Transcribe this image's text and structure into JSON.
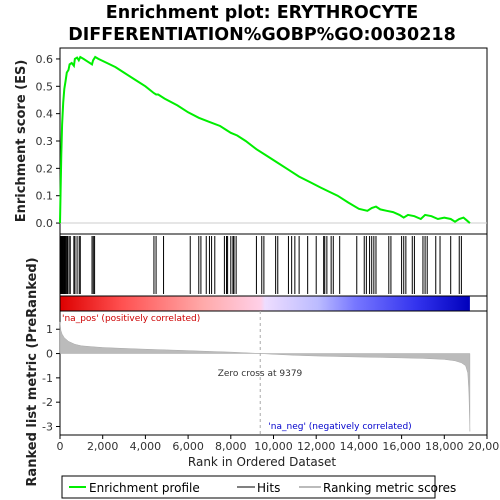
{
  "chart_data": {
    "type": "line",
    "title_line1": "Enrichment plot: ERYTHROCYTE",
    "title_line2": "DIFFERENTIATION%GOBP%GO:0030218",
    "ylabel_top": "Enrichment score (ES)",
    "ylabel_bottom": "Ranked list metric (PreRanked)",
    "xlabel": "Rank in Ordered Dataset",
    "x_ticks": [
      "0",
      "2,000",
      "4,000",
      "6,000",
      "8,000",
      "10,000",
      "12,000",
      "14,000",
      "16,000",
      "18,000",
      "20,000"
    ],
    "y_ticks_top": [
      "0.0",
      "0.1",
      "0.2",
      "0.3",
      "0.4",
      "0.5",
      "0.6"
    ],
    "y_ticks_bottom": [
      "1",
      "0",
      "-1",
      "-2",
      "-3"
    ],
    "xlim": [
      0,
      20000
    ],
    "ylim_top": [
      -0.04,
      0.64
    ],
    "ylim_bottom": [
      -3.35,
      1.75
    ],
    "n_genes": 19200,
    "zero_cross": 9379,
    "annotations": {
      "zero_cross": "Zero cross at 9379",
      "na_pos": "'na_pos' (positively correlated)",
      "na_neg": "'na_neg' (negatively correlated)"
    },
    "legend": {
      "enrichment": "Enrichment profile",
      "hits": "Hits",
      "ranking": "Ranking metric scores"
    },
    "colors": {
      "enrichment": "#00ee00",
      "hits": "#000000",
      "ranking": "#bbbbbb",
      "zero_line": "#bbbbbb",
      "na_pos": "#cc0000",
      "na_neg": "#0000cc"
    },
    "es_profile": [
      [
        0,
        0.0
      ],
      [
        30,
        0.12
      ],
      [
        60,
        0.25
      ],
      [
        100,
        0.36
      ],
      [
        150,
        0.44
      ],
      [
        200,
        0.49
      ],
      [
        260,
        0.52
      ],
      [
        320,
        0.55
      ],
      [
        400,
        0.56
      ],
      [
        450,
        0.58
      ],
      [
        550,
        0.585
      ],
      [
        650,
        0.575
      ],
      [
        700,
        0.6
      ],
      [
        800,
        0.605
      ],
      [
        880,
        0.595
      ],
      [
        950,
        0.607
      ],
      [
        1100,
        0.6
      ],
      [
        1300,
        0.59
      ],
      [
        1500,
        0.58
      ],
      [
        1550,
        0.595
      ],
      [
        1650,
        0.607
      ],
      [
        1800,
        0.6
      ],
      [
        2200,
        0.585
      ],
      [
        2600,
        0.57
      ],
      [
        3000,
        0.55
      ],
      [
        3500,
        0.525
      ],
      [
        4000,
        0.5
      ],
      [
        4400,
        0.475
      ],
      [
        4500,
        0.47
      ],
      [
        4600,
        0.47
      ],
      [
        4900,
        0.455
      ],
      [
        5500,
        0.43
      ],
      [
        6000,
        0.405
      ],
      [
        6500,
        0.385
      ],
      [
        7000,
        0.37
      ],
      [
        7500,
        0.355
      ],
      [
        7800,
        0.34
      ],
      [
        8000,
        0.33
      ],
      [
        8300,
        0.32
      ],
      [
        8700,
        0.3
      ],
      [
        9200,
        0.27
      ],
      [
        9700,
        0.245
      ],
      [
        10200,
        0.22
      ],
      [
        10700,
        0.195
      ],
      [
        11200,
        0.17
      ],
      [
        11700,
        0.15
      ],
      [
        12200,
        0.13
      ],
      [
        12600,
        0.115
      ],
      [
        13000,
        0.1
      ],
      [
        13500,
        0.075
      ],
      [
        14000,
        0.052
      ],
      [
        14400,
        0.045
      ],
      [
        14600,
        0.055
      ],
      [
        14800,
        0.06
      ],
      [
        15000,
        0.05
      ],
      [
        15300,
        0.045
      ],
      [
        15600,
        0.04
      ],
      [
        15900,
        0.03
      ],
      [
        16100,
        0.02
      ],
      [
        16300,
        0.03
      ],
      [
        16600,
        0.025
      ],
      [
        16900,
        0.015
      ],
      [
        17100,
        0.03
      ],
      [
        17400,
        0.025
      ],
      [
        17700,
        0.015
      ],
      [
        18000,
        0.02
      ],
      [
        18300,
        0.015
      ],
      [
        18500,
        0.005
      ],
      [
        18700,
        0.015
      ],
      [
        18900,
        0.02
      ],
      [
        19050,
        0.01
      ],
      [
        19200,
        0.0
      ]
    ],
    "ranking_metric": [
      [
        0,
        1.3
      ],
      [
        40,
        0.95
      ],
      [
        100,
        0.8
      ],
      [
        200,
        0.65
      ],
      [
        400,
        0.5
      ],
      [
        700,
        0.38
      ],
      [
        1000,
        0.32
      ],
      [
        1500,
        0.28
      ],
      [
        2000,
        0.25
      ],
      [
        3000,
        0.21
      ],
      [
        4000,
        0.18
      ],
      [
        5000,
        0.15
      ],
      [
        6000,
        0.12
      ],
      [
        7000,
        0.09
      ],
      [
        8000,
        0.06
      ],
      [
        9000,
        0.02
      ],
      [
        9379,
        0.0
      ],
      [
        10000,
        -0.03
      ],
      [
        11000,
        -0.07
      ],
      [
        12000,
        -0.1
      ],
      [
        13000,
        -0.12
      ],
      [
        14000,
        -0.14
      ],
      [
        15000,
        -0.16
      ],
      [
        16000,
        -0.18
      ],
      [
        17000,
        -0.2
      ],
      [
        18000,
        -0.24
      ],
      [
        18500,
        -0.3
      ],
      [
        18800,
        -0.38
      ],
      [
        19000,
        -0.5
      ],
      [
        19100,
        -0.8
      ],
      [
        19150,
        -1.6
      ],
      [
        19200,
        -3.2
      ]
    ],
    "hits": [
      10,
      30,
      50,
      70,
      90,
      110,
      130,
      160,
      190,
      220,
      260,
      300,
      350,
      420,
      480,
      650,
      700,
      800,
      900,
      950,
      1500,
      1560,
      1620,
      4400,
      4500,
      4850,
      6100,
      6500,
      6600,
      6850,
      7000,
      7100,
      7250,
      7700,
      7800,
      7850,
      8000,
      8100,
      8150,
      8250,
      9200,
      9450,
      9550,
      10100,
      10200,
      10700,
      10850,
      11000,
      11200,
      11600,
      12000,
      12350,
      12400,
      12500,
      12700,
      12800,
      13100,
      13900,
      14250,
      14350,
      14500,
      14600,
      14700,
      14800,
      15400,
      15500,
      16000,
      16100,
      16200,
      16500,
      16600,
      17000,
      17100,
      17200,
      17600,
      17800,
      18300,
      18700,
      18800
    ],
    "series_names": [
      "Enrichment profile",
      "Ranking metric scores"
    ]
  }
}
